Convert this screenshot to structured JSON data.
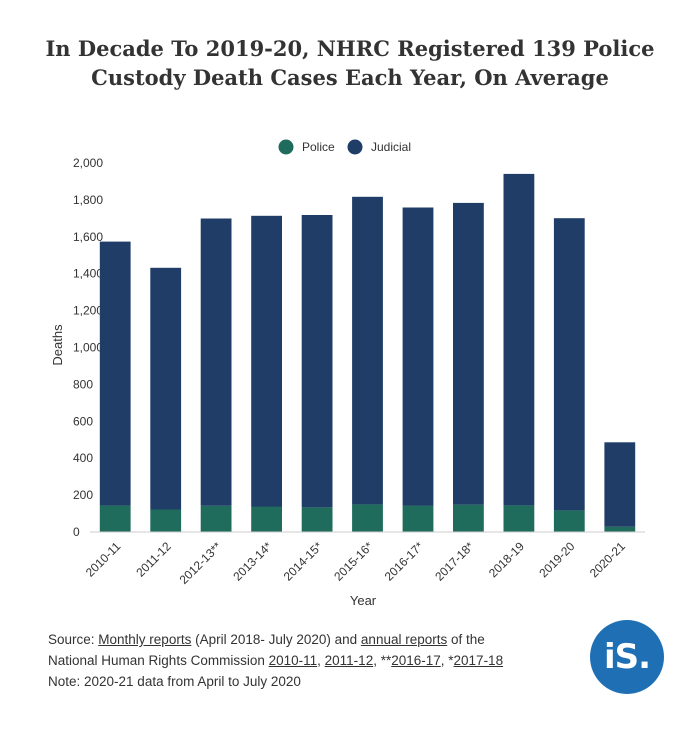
{
  "chart_data": {
    "type": "bar",
    "stacked": true,
    "title_lines": [
      "In Decade To 2019-20, NHRC Registered 139 Police",
      "Custody Death Cases Each Year, On Average"
    ],
    "xlabel": "Year",
    "ylabel": "Deaths",
    "ylim": [
      0,
      2000
    ],
    "yticks": [
      "2,000",
      "1,800",
      "1,600",
      "1,400",
      "1,200",
      "1,000",
      "800",
      "600",
      "400",
      "200",
      "0"
    ],
    "ytick_values": [
      2000,
      1800,
      1600,
      1400,
      1200,
      1000,
      800,
      600,
      400,
      200,
      0
    ],
    "grid": false,
    "legend_position": "top-center",
    "categories": [
      "2010-11",
      "2011-12",
      "2012-13**",
      "2013-14*",
      "2014-15*",
      "2015-16*",
      "2016-17*",
      "2017-18*",
      "2018-19",
      "2019-20",
      "2020-21"
    ],
    "series": [
      {
        "name": "Police",
        "color": "#1f6b5c",
        "values": [
          143,
          122,
          142,
          138,
          133,
          150,
          143,
          148,
          144,
          117,
          28
        ]
      },
      {
        "name": "Judicial",
        "color": "#1f3d66",
        "values": [
          1431,
          1310,
          1557,
          1576,
          1585,
          1667,
          1616,
          1636,
          1797,
          1584,
          458
        ]
      }
    ]
  },
  "footer": {
    "source_label": "Source: ",
    "monthly_reports": "Monthly reports",
    "mid_text": " (April 2018- July 2020) and ",
    "annual_reports": "annual reports",
    "of_the": " of the",
    "nhrc": "National Human Rights Commission ",
    "r1": "2010-11",
    "sep1": ",  ",
    "r2": "2011-12",
    "sep2": ", **",
    "r3": "2016-17",
    "sep3": ", *",
    "r4": "2017-18",
    "note": "Note: 2020-21 data from April to July 2020"
  },
  "logo": {
    "text": "iS."
  }
}
